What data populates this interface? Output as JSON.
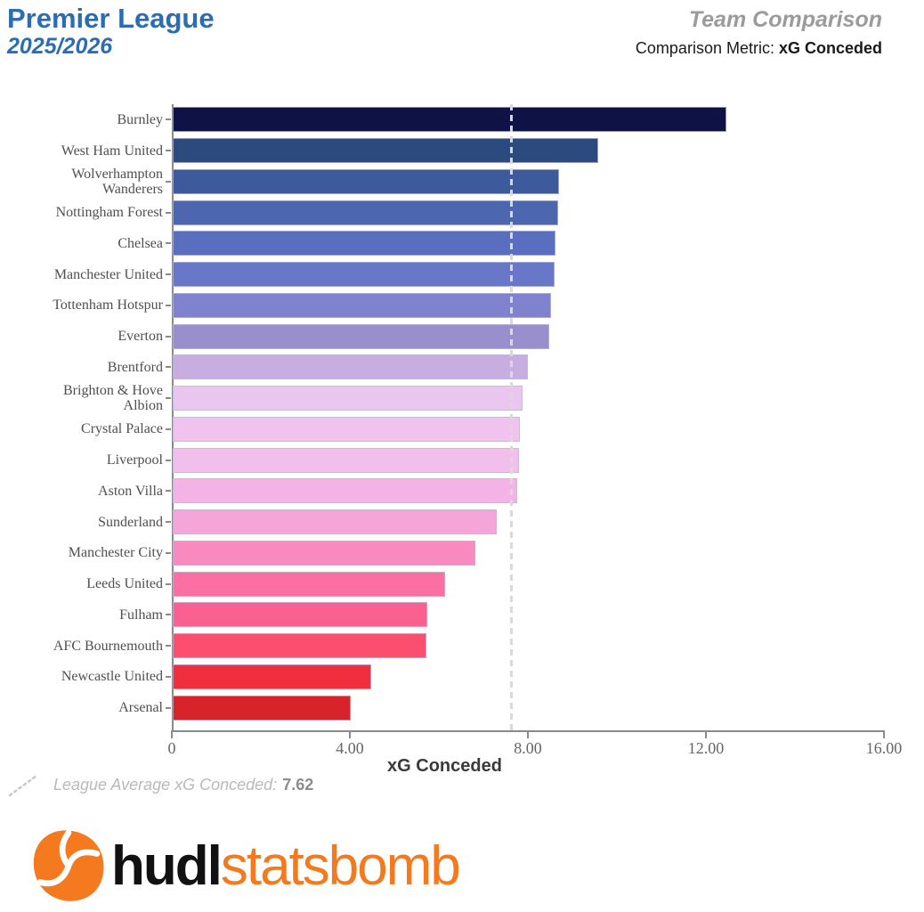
{
  "header": {
    "title": "Premier League",
    "season": "2025/2026",
    "right_title": "Team Comparison",
    "metric_prefix": "Comparison Metric: ",
    "metric_name": "xG Conceded"
  },
  "theme": {
    "title-blue": "#2b6cb3",
    "muted-gray": "#9b9b9b",
    "statsbomb-orange": "#f4791f",
    "avg-line": "#d9d9d9"
  },
  "chart_data": {
    "type": "bar",
    "orientation": "horizontal",
    "xlabel": "xG Conceded",
    "xlim": [
      0,
      16
    ],
    "xticks": [
      0,
      4,
      8,
      12,
      16
    ],
    "xtick_labels": [
      "0",
      "4.00",
      "8.00",
      "12.00",
      "16.00"
    ],
    "grid": false,
    "league_average": 7.62,
    "average_line_style": "dashed",
    "categories": [
      "Burnley",
      "West Ham United",
      "Wolverhampton Wanderers",
      "Nottingham Forest",
      "Chelsea",
      "Manchester United",
      "Tottenham Hotspur",
      "Everton",
      "Brentford",
      "Brighton & Hove Albion",
      "Crystal Palace",
      "Liverpool",
      "Aston Villa",
      "Sunderland",
      "Manchester City",
      "Leeds United",
      "Fulham",
      "AFC Bournemouth",
      "Newcastle United",
      "Arsenal"
    ],
    "values": [
      12.44,
      9.55,
      8.68,
      8.65,
      8.6,
      8.57,
      8.5,
      8.46,
      7.98,
      7.85,
      7.79,
      7.78,
      7.73,
      7.28,
      6.8,
      6.12,
      5.72,
      5.7,
      4.46,
      4.0
    ],
    "bar_colors": [
      "#0e1245",
      "#2c4a7e",
      "#3d5a9c",
      "#4d66b0",
      "#5a6ec0",
      "#6877c8",
      "#7f82cd",
      "#9a8fcd",
      "#c8aee0",
      "#e8c6ee",
      "#f0c2ee",
      "#f2bfec",
      "#f3b3e4",
      "#f5a5d8",
      "#f88abf",
      "#fa70a3",
      "#fb6190",
      "#fc4f70",
      "#f12e3e",
      "#d8232b"
    ]
  },
  "legend": {
    "label": "League Average xG Conceded: ",
    "value": "7.62"
  },
  "footer_logo": {
    "brand_left": "hudl",
    "brand_right": "statsbomb"
  }
}
